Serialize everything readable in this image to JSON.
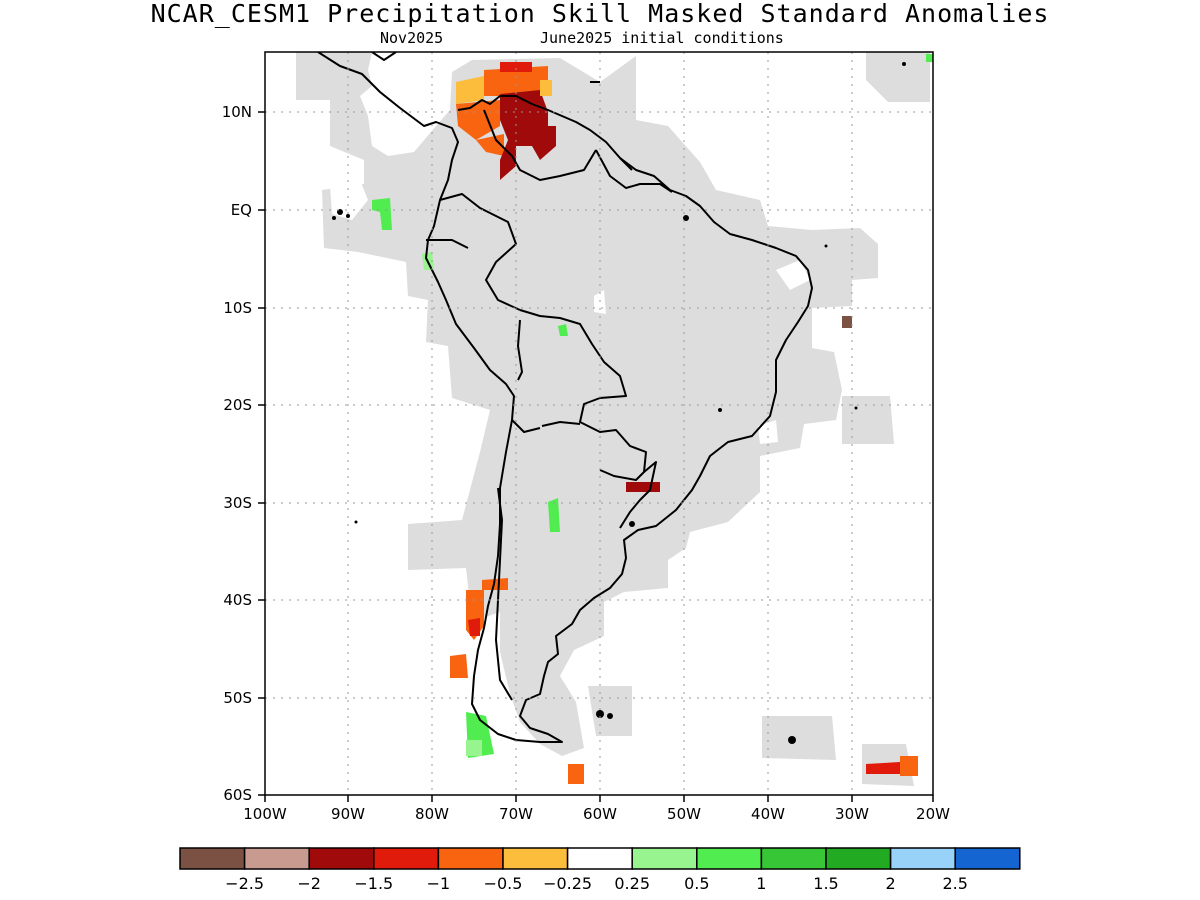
{
  "title": "NCAR_CESM1 Precipitation Skill Masked Standard Anomalies",
  "subtitle_left": "Nov2025",
  "subtitle_right": "June2025 initial conditions",
  "map": {
    "lon_range": [
      -100,
      -20
    ],
    "lat_range": [
      -60,
      15
    ],
    "lon_ticks": [
      "100W",
      "90W",
      "80W",
      "70W",
      "60W",
      "50W",
      "40W",
      "30W",
      "20W"
    ],
    "lat_ticks": [
      "10N",
      "EQ",
      "10S",
      "20S",
      "30S",
      "40S",
      "50S",
      "60S"
    ],
    "mask_color": "#dddddd"
  },
  "colorbar": {
    "colors": [
      "#7a5142",
      "#c99b90",
      "#a00a0a",
      "#e01b0b",
      "#f86410",
      "#fcbc3c",
      "#ffffff",
      "#98f48e",
      "#50ec50",
      "#36c636",
      "#22aa22",
      "#98d2f8",
      "#1464d2"
    ],
    "labels": [
      "−2.5",
      "−2",
      "−1.5",
      "−1",
      "−0.5",
      "−0.25",
      "0.25",
      "0.5",
      "1",
      "1.5",
      "2",
      "2.5"
    ]
  }
}
